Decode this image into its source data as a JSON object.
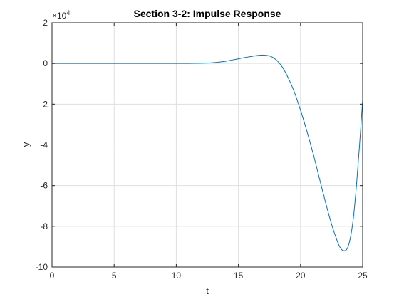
{
  "chart_data": {
    "type": "line",
    "title": "Section 3-2: Impulse Response",
    "xlabel": "t",
    "ylabel": "y",
    "xlim": [
      0,
      25
    ],
    "ylim": [
      -100000,
      20000
    ],
    "xticks": [
      0,
      5,
      10,
      15,
      20,
      25
    ],
    "xtick_labels": [
      "0",
      "5",
      "10",
      "15",
      "20",
      "25"
    ],
    "yticks": [
      -100000,
      -80000,
      -60000,
      -40000,
      -20000,
      0,
      20000
    ],
    "ytick_labels": [
      "-10",
      "-8",
      "-6",
      "-4",
      "-2",
      "0",
      "2"
    ],
    "y_exponent_base": "×10",
    "y_exponent_power": "4",
    "grid": true,
    "series": [
      {
        "color": "#0072bd",
        "x": [
          0,
          2,
          4,
          6,
          8,
          10,
          11,
          12,
          12.5,
          13,
          13.5,
          14,
          14.5,
          15,
          15.5,
          16,
          16.5,
          17,
          17.5,
          18,
          18.5,
          19,
          19.5,
          20,
          20.5,
          21,
          21.5,
          22,
          22.5,
          23,
          23.25,
          23.5,
          23.75,
          24,
          24.25,
          24.5,
          24.75,
          25
        ],
        "y": [
          0,
          0,
          0,
          0,
          0,
          0,
          20,
          100,
          200,
          400,
          700,
          1100,
          1700,
          2300,
          2900,
          3400,
          3900,
          4100,
          3700,
          2000,
          -1500,
          -7000,
          -14000,
          -23000,
          -33000,
          -44000,
          -56000,
          -68000,
          -79000,
          -88000,
          -91000,
          -92000,
          -91000,
          -86000,
          -76000,
          -60000,
          -40000,
          -18000
        ]
      }
    ]
  }
}
